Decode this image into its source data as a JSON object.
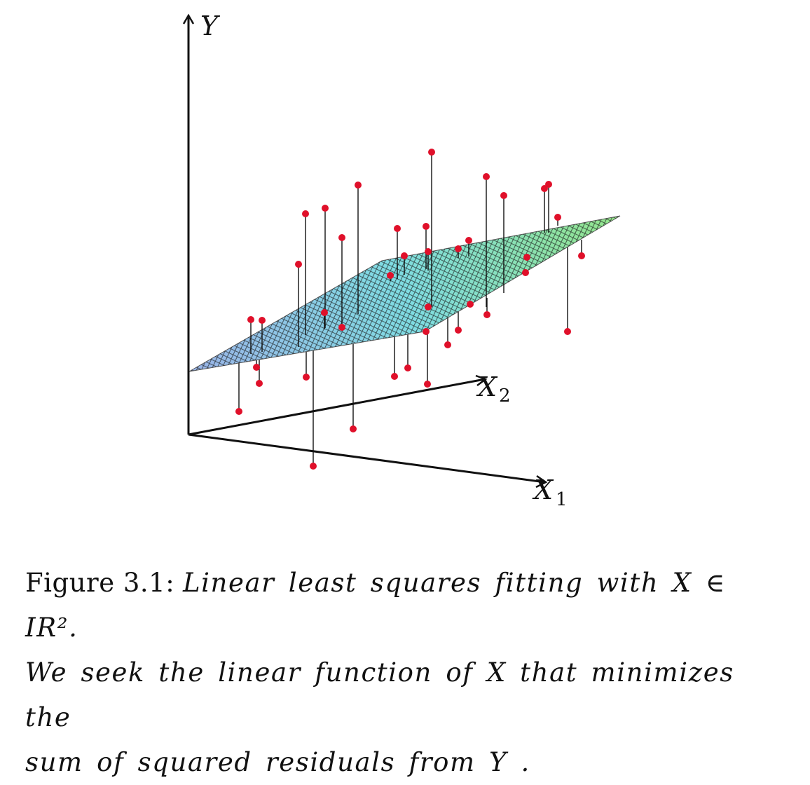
{
  "axes": {
    "y": "Y",
    "x1_base": "X",
    "x1_sub": "1",
    "x2_base": "X",
    "x2_sub": "2"
  },
  "caption": {
    "lead": "Figure 3.1:",
    "line1": "Linear least squares fitting with X ∈ IR².",
    "line2": "We seek the linear function of X that minimizes the",
    "line3": "sum of squared residuals from Y ."
  },
  "colors": {
    "point": "#e0102a",
    "residual_line": "#111111",
    "axis": "#111111",
    "mesh": "#1a1a1a",
    "plane_blue": "#8fb3e6",
    "plane_cyan": "#7fe0e0",
    "plane_green": "#8fe08a"
  }
}
